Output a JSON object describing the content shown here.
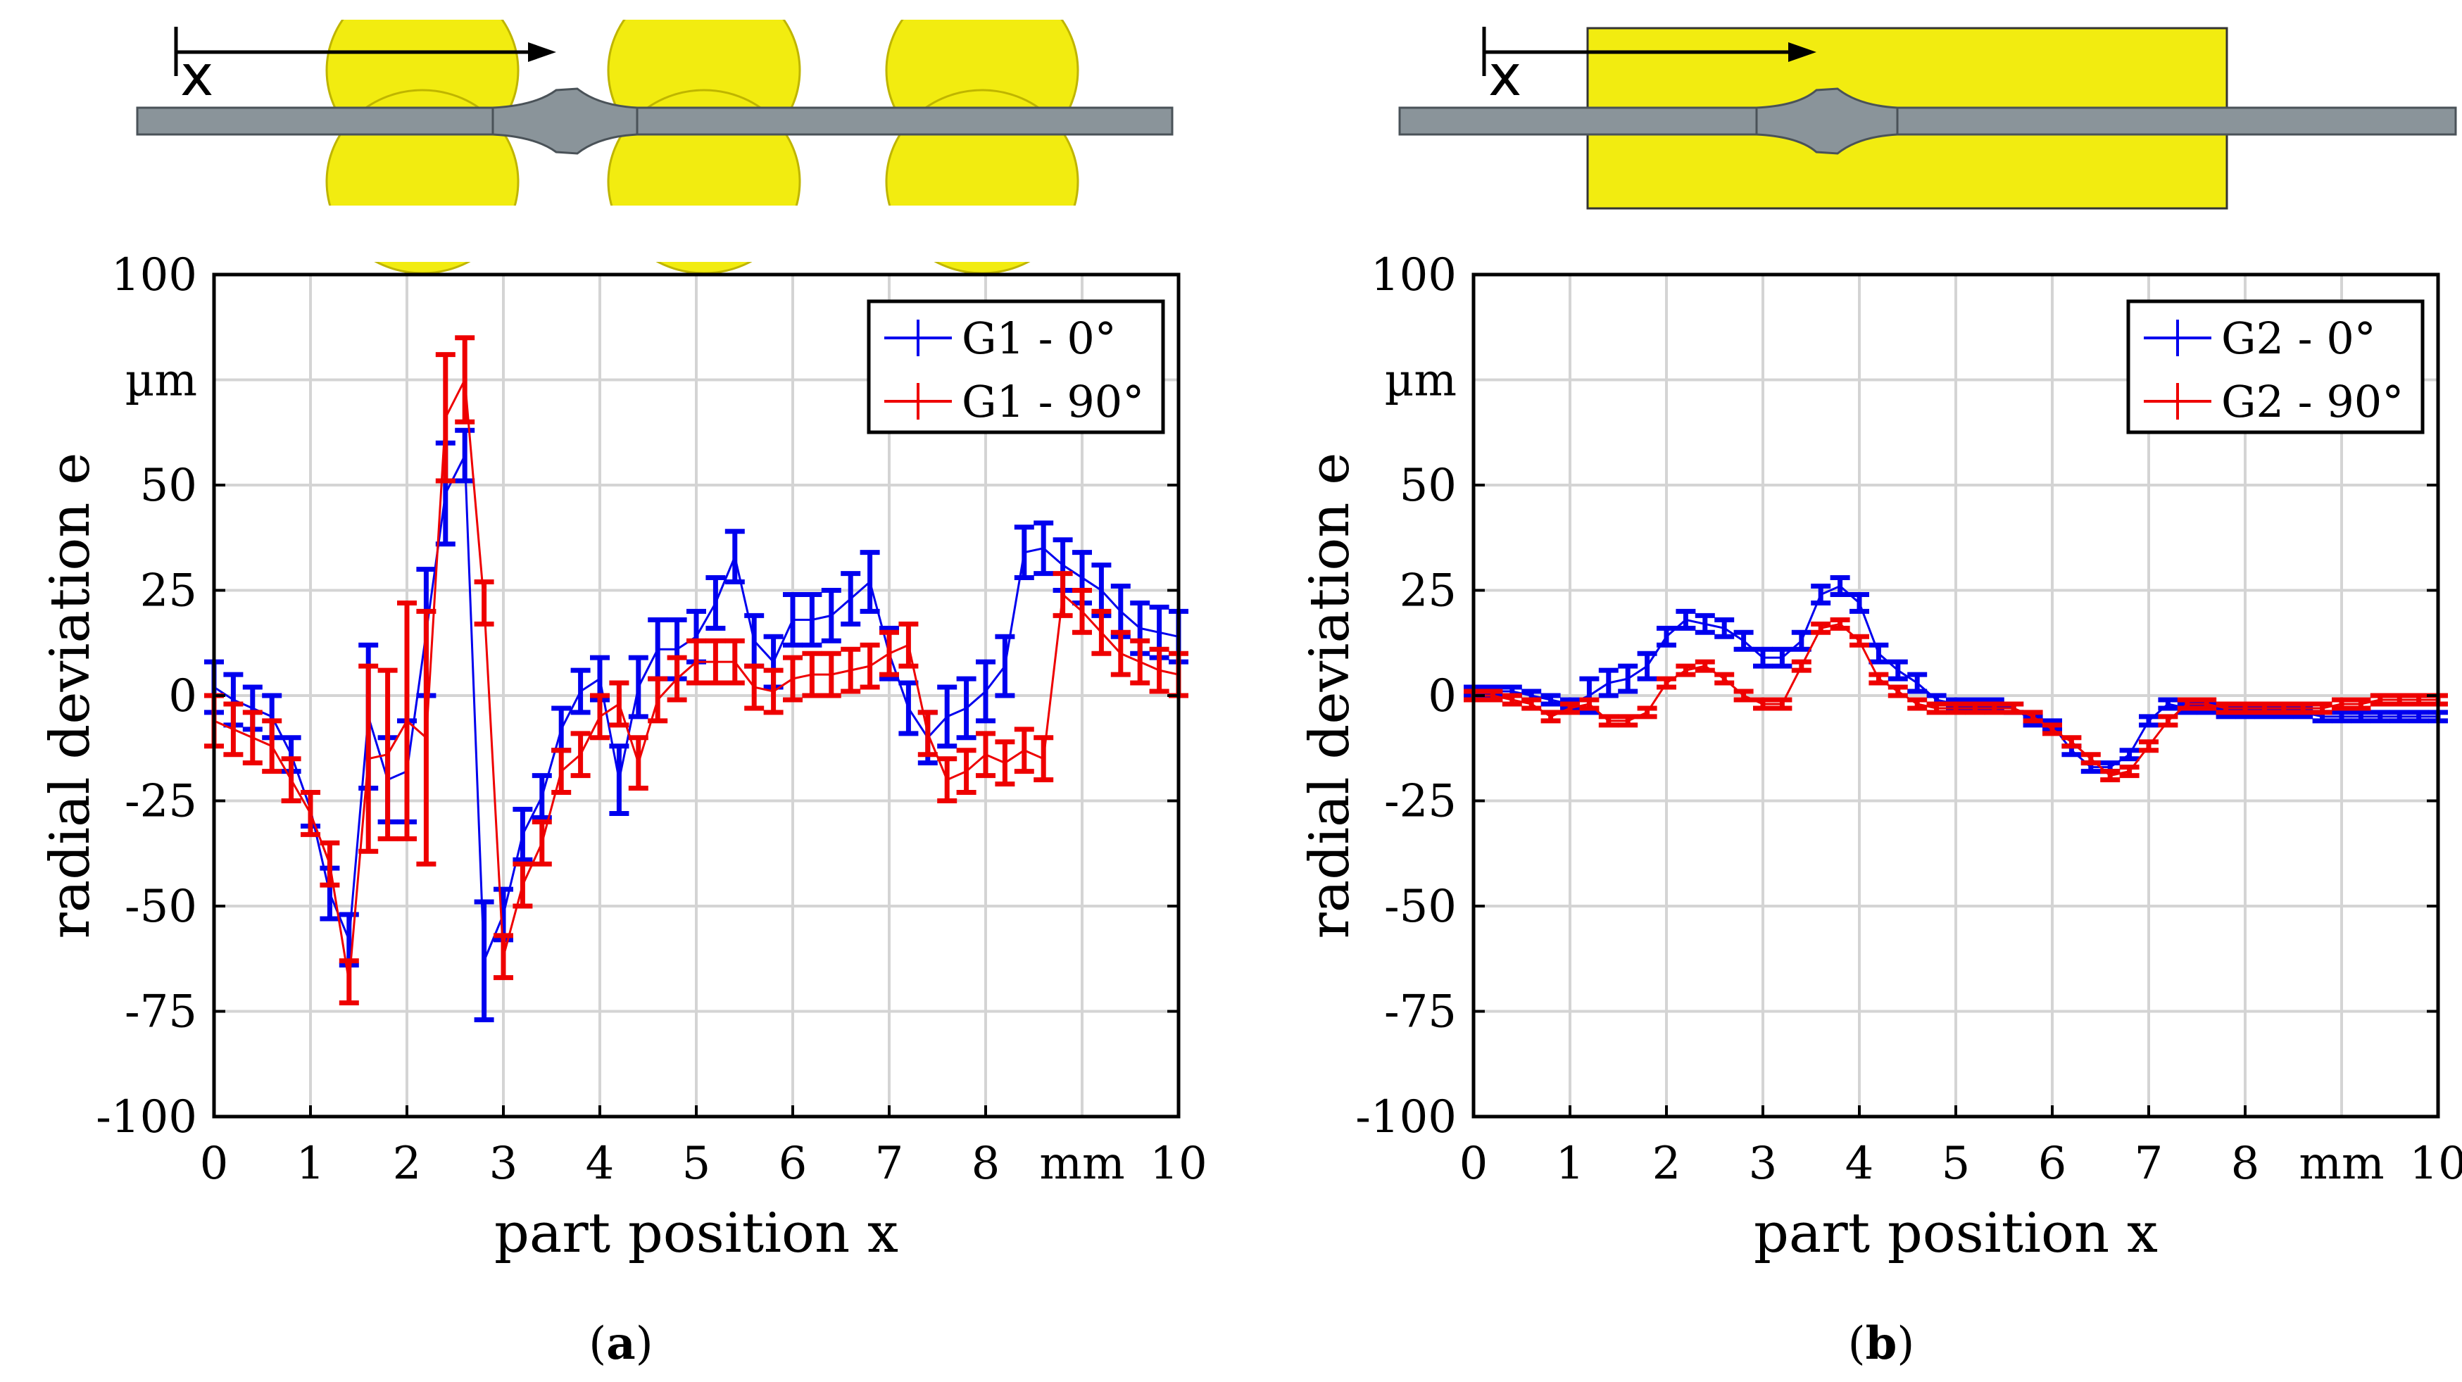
{
  "chart_data": [
    {
      "id": "a",
      "type": "line",
      "caption_open": "(",
      "caption_letter": "a",
      "caption_close": ")",
      "xlabel": "part position x",
      "ylabel": "radial deviation e",
      "x_unit": "mm",
      "y_unit": "µm",
      "xlim": [
        0,
        10
      ],
      "ylim": [
        -100,
        100
      ],
      "xticks": [
        "0",
        "1",
        "2",
        "3",
        "4",
        "5",
        "6",
        "7",
        "8",
        "10"
      ],
      "xtick_values": [
        0,
        1,
        2,
        3,
        4,
        5,
        6,
        7,
        8,
        10
      ],
      "yticks": [
        "100",
        "50",
        "25",
        "0",
        "-25",
        "-50",
        "-75",
        "-100"
      ],
      "ytick_values": [
        100,
        50,
        25,
        0,
        -25,
        -50,
        -75,
        -100
      ],
      "grid": true,
      "legend_position": "top-right",
      "diagram": {
        "type": "rollers",
        "axis_label": "x"
      },
      "series": [
        {
          "name": "G1 - 0°",
          "color": "#0000ee",
          "x": [
            0,
            0.2,
            0.4,
            0.6,
            0.8,
            1.0,
            1.2,
            1.4,
            1.6,
            1.8,
            2.0,
            2.2,
            2.4,
            2.6,
            2.8,
            3.0,
            3.2,
            3.4,
            3.6,
            3.8,
            4.0,
            4.2,
            4.4,
            4.6,
            4.8,
            5.0,
            5.2,
            5.4,
            5.6,
            5.8,
            6.0,
            6.2,
            6.4,
            6.6,
            6.8,
            7.0,
            7.2,
            7.4,
            7.6,
            7.8,
            8.0,
            8.2,
            8.4,
            8.6,
            8.8,
            9.0,
            9.2,
            9.4,
            9.6,
            9.8,
            10.0
          ],
          "y": [
            2,
            -1,
            -3,
            -5,
            -14,
            -27,
            -47,
            -58,
            -5,
            -20,
            -18,
            15,
            48,
            57,
            -63,
            -52,
            -33,
            -24,
            -8,
            1,
            4,
            -20,
            2,
            11,
            11,
            14,
            22,
            33,
            13,
            8,
            18,
            18,
            19,
            23,
            27,
            10,
            -3,
            -10,
            -5,
            -3,
            1,
            7,
            34,
            35,
            31,
            28,
            25,
            20,
            16,
            15,
            14
          ],
          "err": [
            6,
            6,
            5,
            5,
            4,
            4,
            6,
            6,
            17,
            10,
            12,
            15,
            12,
            6,
            14,
            6,
            6,
            5,
            5,
            5,
            5,
            8,
            7,
            7,
            7,
            6,
            6,
            6,
            6,
            6,
            6,
            6,
            6,
            6,
            7,
            6,
            6,
            6,
            7,
            7,
            7,
            7,
            6,
            6,
            6,
            6,
            6,
            6,
            6,
            6,
            6
          ]
        },
        {
          "name": "G1 - 90°",
          "color": "#ee0000",
          "x": [
            0,
            0.2,
            0.4,
            0.6,
            0.8,
            1.0,
            1.2,
            1.4,
            1.6,
            1.8,
            2.0,
            2.2,
            2.4,
            2.6,
            2.8,
            3.0,
            3.2,
            3.4,
            3.6,
            3.8,
            4.0,
            4.2,
            4.4,
            4.6,
            4.8,
            5.0,
            5.2,
            5.4,
            5.6,
            5.8,
            6.0,
            6.2,
            6.4,
            6.6,
            6.8,
            7.0,
            7.2,
            7.4,
            7.6,
            7.8,
            8.0,
            8.2,
            8.4,
            8.6,
            8.8,
            9.0,
            9.2,
            9.4,
            9.6,
            9.8,
            10.0
          ],
          "y": [
            -6,
            -8,
            -10,
            -12,
            -20,
            -28,
            -40,
            -68,
            -15,
            -14,
            -6,
            -10,
            66,
            75,
            22,
            -62,
            -45,
            -35,
            -18,
            -14,
            -5,
            -2,
            -16,
            -1,
            4,
            8,
            8,
            8,
            2,
            1,
            4,
            5,
            5,
            6,
            7,
            10,
            12,
            -9,
            -20,
            -18,
            -14,
            -16,
            -13,
            -15,
            24,
            20,
            15,
            10,
            8,
            6,
            5
          ],
          "err": [
            6,
            6,
            6,
            6,
            5,
            5,
            5,
            5,
            22,
            20,
            28,
            30,
            15,
            10,
            5,
            5,
            5,
            5,
            5,
            5,
            5,
            5,
            6,
            5,
            5,
            5,
            5,
            5,
            5,
            5,
            5,
            5,
            5,
            5,
            5,
            5,
            5,
            5,
            5,
            5,
            5,
            5,
            5,
            5,
            5,
            5,
            5,
            5,
            5,
            5,
            5
          ]
        }
      ]
    },
    {
      "id": "b",
      "type": "line",
      "caption_open": "(",
      "caption_letter": "b",
      "caption_close": ")",
      "xlabel": "part position x",
      "ylabel": "radial deviation e",
      "x_unit": "mm",
      "y_unit": "µm",
      "xlim": [
        0,
        10
      ],
      "ylim": [
        -100,
        100
      ],
      "xticks": [
        "0",
        "1",
        "2",
        "3",
        "4",
        "5",
        "6",
        "7",
        "8",
        "10"
      ],
      "xtick_values": [
        0,
        1,
        2,
        3,
        4,
        5,
        6,
        7,
        8,
        10
      ],
      "yticks": [
        "100",
        "50",
        "25",
        "0",
        "-25",
        "-50",
        "-75",
        "-100"
      ],
      "ytick_values": [
        100,
        50,
        25,
        0,
        -25,
        -50,
        -75,
        -100
      ],
      "grid": true,
      "legend_position": "top-right",
      "diagram": {
        "type": "block",
        "axis_label": "x"
      },
      "series": [
        {
          "name": "G2 - 0°",
          "color": "#0000ee",
          "x": [
            0,
            0.2,
            0.4,
            0.6,
            0.8,
            1.0,
            1.2,
            1.4,
            1.6,
            1.8,
            2.0,
            2.2,
            2.4,
            2.6,
            2.8,
            3.0,
            3.2,
            3.4,
            3.6,
            3.8,
            4.0,
            4.2,
            4.4,
            4.6,
            4.8,
            5.0,
            5.2,
            5.4,
            5.6,
            5.8,
            6.0,
            6.2,
            6.4,
            6.6,
            6.8,
            7.0,
            7.2,
            7.4,
            7.6,
            7.8,
            8.0,
            8.2,
            8.4,
            8.6,
            8.8,
            9.0,
            9.2,
            9.4,
            9.6,
            9.8,
            10.0
          ],
          "y": [
            1,
            1,
            1,
            0,
            -1,
            -2,
            0,
            3,
            4,
            7,
            14,
            18,
            17,
            16,
            13,
            9,
            9,
            13,
            24,
            26,
            22,
            10,
            6,
            3,
            -1,
            -2,
            -2,
            -2,
            -3,
            -6,
            -7,
            -13,
            -17,
            -17,
            -14,
            -6,
            -2,
            -3,
            -3,
            -4,
            -4,
            -4,
            -4,
            -4,
            -5,
            -5,
            -5,
            -5,
            -5,
            -5,
            -5
          ],
          "err": [
            1,
            1,
            1,
            1,
            1,
            1,
            4,
            3,
            3,
            3,
            2,
            2,
            2,
            2,
            2,
            2,
            2,
            2,
            2,
            2,
            2,
            2,
            2,
            2,
            1,
            1,
            1,
            1,
            1,
            1,
            1,
            1,
            1,
            1,
            1,
            1,
            1,
            1,
            1,
            1,
            1,
            1,
            1,
            1,
            1,
            1,
            1,
            1,
            1,
            1,
            1
          ]
        },
        {
          "name": "G2 - 90°",
          "color": "#ee0000",
          "x": [
            0,
            0.2,
            0.4,
            0.6,
            0.8,
            1.0,
            1.2,
            1.4,
            1.6,
            1.8,
            2.0,
            2.2,
            2.4,
            2.6,
            2.8,
            3.0,
            3.2,
            3.4,
            3.6,
            3.8,
            4.0,
            4.2,
            4.4,
            4.6,
            4.8,
            5.0,
            5.2,
            5.4,
            5.6,
            5.8,
            6.0,
            6.2,
            6.4,
            6.6,
            6.8,
            7.0,
            7.2,
            7.4,
            7.6,
            7.8,
            8.0,
            8.2,
            8.4,
            8.6,
            8.8,
            9.0,
            9.2,
            9.4,
            9.6,
            9.8,
            10.0
          ],
          "y": [
            0,
            0,
            -1,
            -2,
            -5,
            -3,
            -2,
            -6,
            -6,
            -4,
            3,
            6,
            7,
            4,
            0,
            -2,
            -2,
            7,
            16,
            17,
            13,
            4,
            1,
            -2,
            -3,
            -3,
            -3,
            -3,
            -3,
            -5,
            -8,
            -11,
            -15,
            -19,
            -18,
            -12,
            -6,
            -2,
            -2,
            -3,
            -3,
            -3,
            -3,
            -3,
            -3,
            -2,
            -2,
            -1,
            -1,
            -1,
            -1
          ],
          "err": [
            1,
            1,
            1,
            1,
            1,
            1,
            1,
            1,
            1,
            1,
            1,
            1,
            1,
            1,
            1,
            1,
            1,
            1,
            1,
            1,
            1,
            1,
            1,
            1,
            1,
            1,
            1,
            1,
            1,
            1,
            1,
            1,
            1,
            1,
            1,
            1,
            1,
            1,
            1,
            1,
            1,
            1,
            1,
            1,
            1,
            1,
            1,
            1,
            1,
            1,
            1
          ]
        }
      ]
    }
  ]
}
